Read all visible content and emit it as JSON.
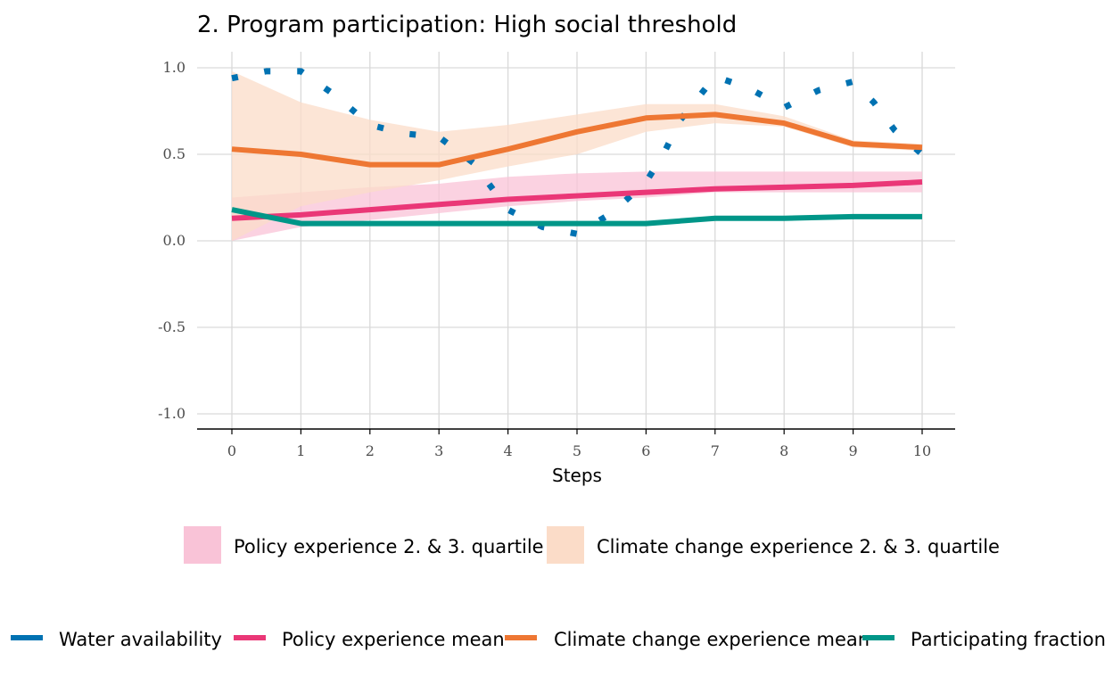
{
  "chart_data": {
    "type": "line",
    "title": "2. Program participation: High social threshold",
    "xlabel": "Steps",
    "ylabel": "",
    "xlim": [
      0,
      10
    ],
    "ylim": [
      -1.0,
      1.0
    ],
    "x_ticks": [
      0,
      1,
      2,
      3,
      4,
      5,
      6,
      7,
      8,
      9,
      10
    ],
    "x_tick_labels": [
      "0",
      "1",
      "2",
      "3",
      "4",
      "5",
      "6",
      "7",
      "8",
      "9",
      "10"
    ],
    "y_ticks": [
      -1.0,
      -0.5,
      0.0,
      0.5,
      1.0
    ],
    "y_tick_labels": [
      "-1.0",
      "-0.5",
      "0.0",
      "0.5",
      "1.0"
    ],
    "grid": true,
    "x": [
      0,
      1,
      2,
      3,
      4,
      5,
      6,
      7,
      8,
      9,
      10
    ],
    "bands": [
      {
        "name": "Policy experience 2. & 3. quartile",
        "color": "#f9c3d7",
        "lower": [
          0.0,
          0.08,
          0.12,
          0.16,
          0.2,
          0.23,
          0.25,
          0.28,
          0.28,
          0.28,
          0.28
        ],
        "upper": [
          0.25,
          0.28,
          0.31,
          0.33,
          0.37,
          0.39,
          0.4,
          0.4,
          0.4,
          0.4,
          0.4
        ]
      },
      {
        "name": "Climate change experience 2. & 3. quartile",
        "color": "#fbdcc8",
        "lower": [
          0.0,
          0.2,
          0.28,
          0.35,
          0.43,
          0.5,
          0.63,
          0.68,
          0.66,
          0.54,
          0.52
        ],
        "upper": [
          0.98,
          0.8,
          0.7,
          0.63,
          0.67,
          0.73,
          0.79,
          0.79,
          0.72,
          0.58,
          0.56
        ]
      }
    ],
    "series": [
      {
        "name": "Water availability",
        "color": "#0072b2",
        "style": "dotted",
        "x": [
          0,
          0.5,
          1,
          1.5,
          2,
          2.5,
          3,
          3.5,
          4,
          4.5,
          5,
          5.5,
          6,
          6.25,
          6.5,
          7,
          7.5,
          8,
          8.5,
          9,
          9.3,
          9.6,
          10
        ],
        "values": [
          0.94,
          0.98,
          0.98,
          0.84,
          0.67,
          0.62,
          0.6,
          0.45,
          0.18,
          0.08,
          0.04,
          0.16,
          0.34,
          0.5,
          0.7,
          0.95,
          0.88,
          0.77,
          0.87,
          0.92,
          0.8,
          0.64,
          0.5
        ]
      },
      {
        "name": "Policy experience mean",
        "color": "#ea3777",
        "style": "solid",
        "values": [
          0.13,
          0.15,
          0.18,
          0.21,
          0.24,
          0.26,
          0.28,
          0.3,
          0.31,
          0.32,
          0.34
        ]
      },
      {
        "name": "Climate change experience mean",
        "color": "#ee7733",
        "style": "solid",
        "values": [
          0.53,
          0.5,
          0.44,
          0.44,
          0.53,
          0.63,
          0.71,
          0.73,
          0.68,
          0.56,
          0.54
        ]
      },
      {
        "name": "Participating fraction mean",
        "color": "#009688",
        "style": "solid",
        "values": [
          0.18,
          0.1,
          0.1,
          0.1,
          0.1,
          0.1,
          0.1,
          0.13,
          0.13,
          0.14,
          0.14
        ]
      }
    ],
    "legend_placement": "bottom"
  }
}
